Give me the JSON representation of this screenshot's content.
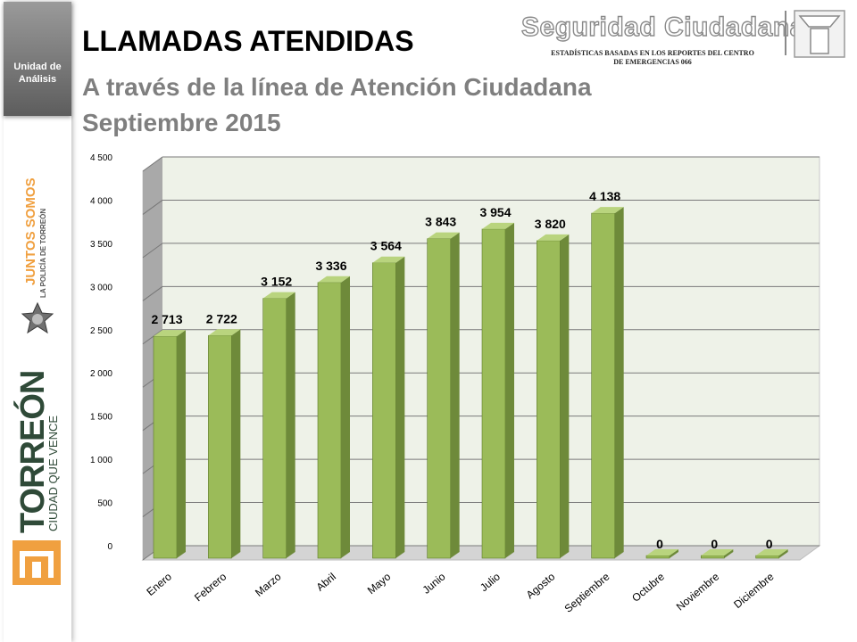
{
  "sidebar": {
    "unit_line1": "Unidad de",
    "unit_line2": "Análisis",
    "logo1_line1": "JUNTOS SOMOS",
    "logo1_line2": "LA POLICÍA DE TORREÓN",
    "logo2_line1": "TORREÓN",
    "logo2_line2": "CIUDAD QUE VENCE",
    "colors": {
      "unit_bg": "#7f7f7f",
      "accent_orange": "#f0a040",
      "torreon_green": "#2f4a38"
    }
  },
  "header": {
    "title": "LLAMADAS ATENDIDAS",
    "subtitle_line1": "A través de la línea de Atención Ciudadana",
    "subtitle_line2": "Septiembre 2015",
    "brand": "Seguridad Ciudadana",
    "brand_note_line1": "ESTADÍSTICAS BASADAS EN LOS REPORTES DEL CENTRO",
    "brand_note_line2": "DE EMERGENCIAS 066"
  },
  "chart_data": {
    "type": "bar",
    "style": "3d-column",
    "categories": [
      "Enero",
      "Febrero",
      "Marzo",
      "Abril",
      "Mayo",
      "Junio",
      "Julio",
      "Agosto",
      "Septiembre",
      "Octubre",
      "Noviembre",
      "Diciembre"
    ],
    "values": [
      2713,
      2722,
      3152,
      3336,
      3564,
      3843,
      3954,
      3820,
      4138,
      0,
      0,
      0
    ],
    "data_labels": [
      "2 713",
      "2 722",
      "3 152",
      "3 336",
      "3 564",
      "3 843",
      "3 954",
      "3 820",
      "4 138",
      "0",
      "0",
      "0"
    ],
    "ylim": [
      0,
      4500
    ],
    "yticks": [
      0,
      500,
      1000,
      1500,
      2000,
      2500,
      3000,
      3500,
      4000,
      4500
    ],
    "ytick_labels": [
      "0",
      "500",
      "1 000",
      "1 500",
      "2 000",
      "2 500",
      "3 000",
      "3 500",
      "4 000",
      "4 500"
    ],
    "grid": true,
    "legend": "none",
    "colors": {
      "bar_front": "#9bbb59",
      "bar_side": "#6e8a3a",
      "bar_top": "#b9d47e",
      "wall": "#eef2e8",
      "floor": "#d4d4d4"
    }
  }
}
